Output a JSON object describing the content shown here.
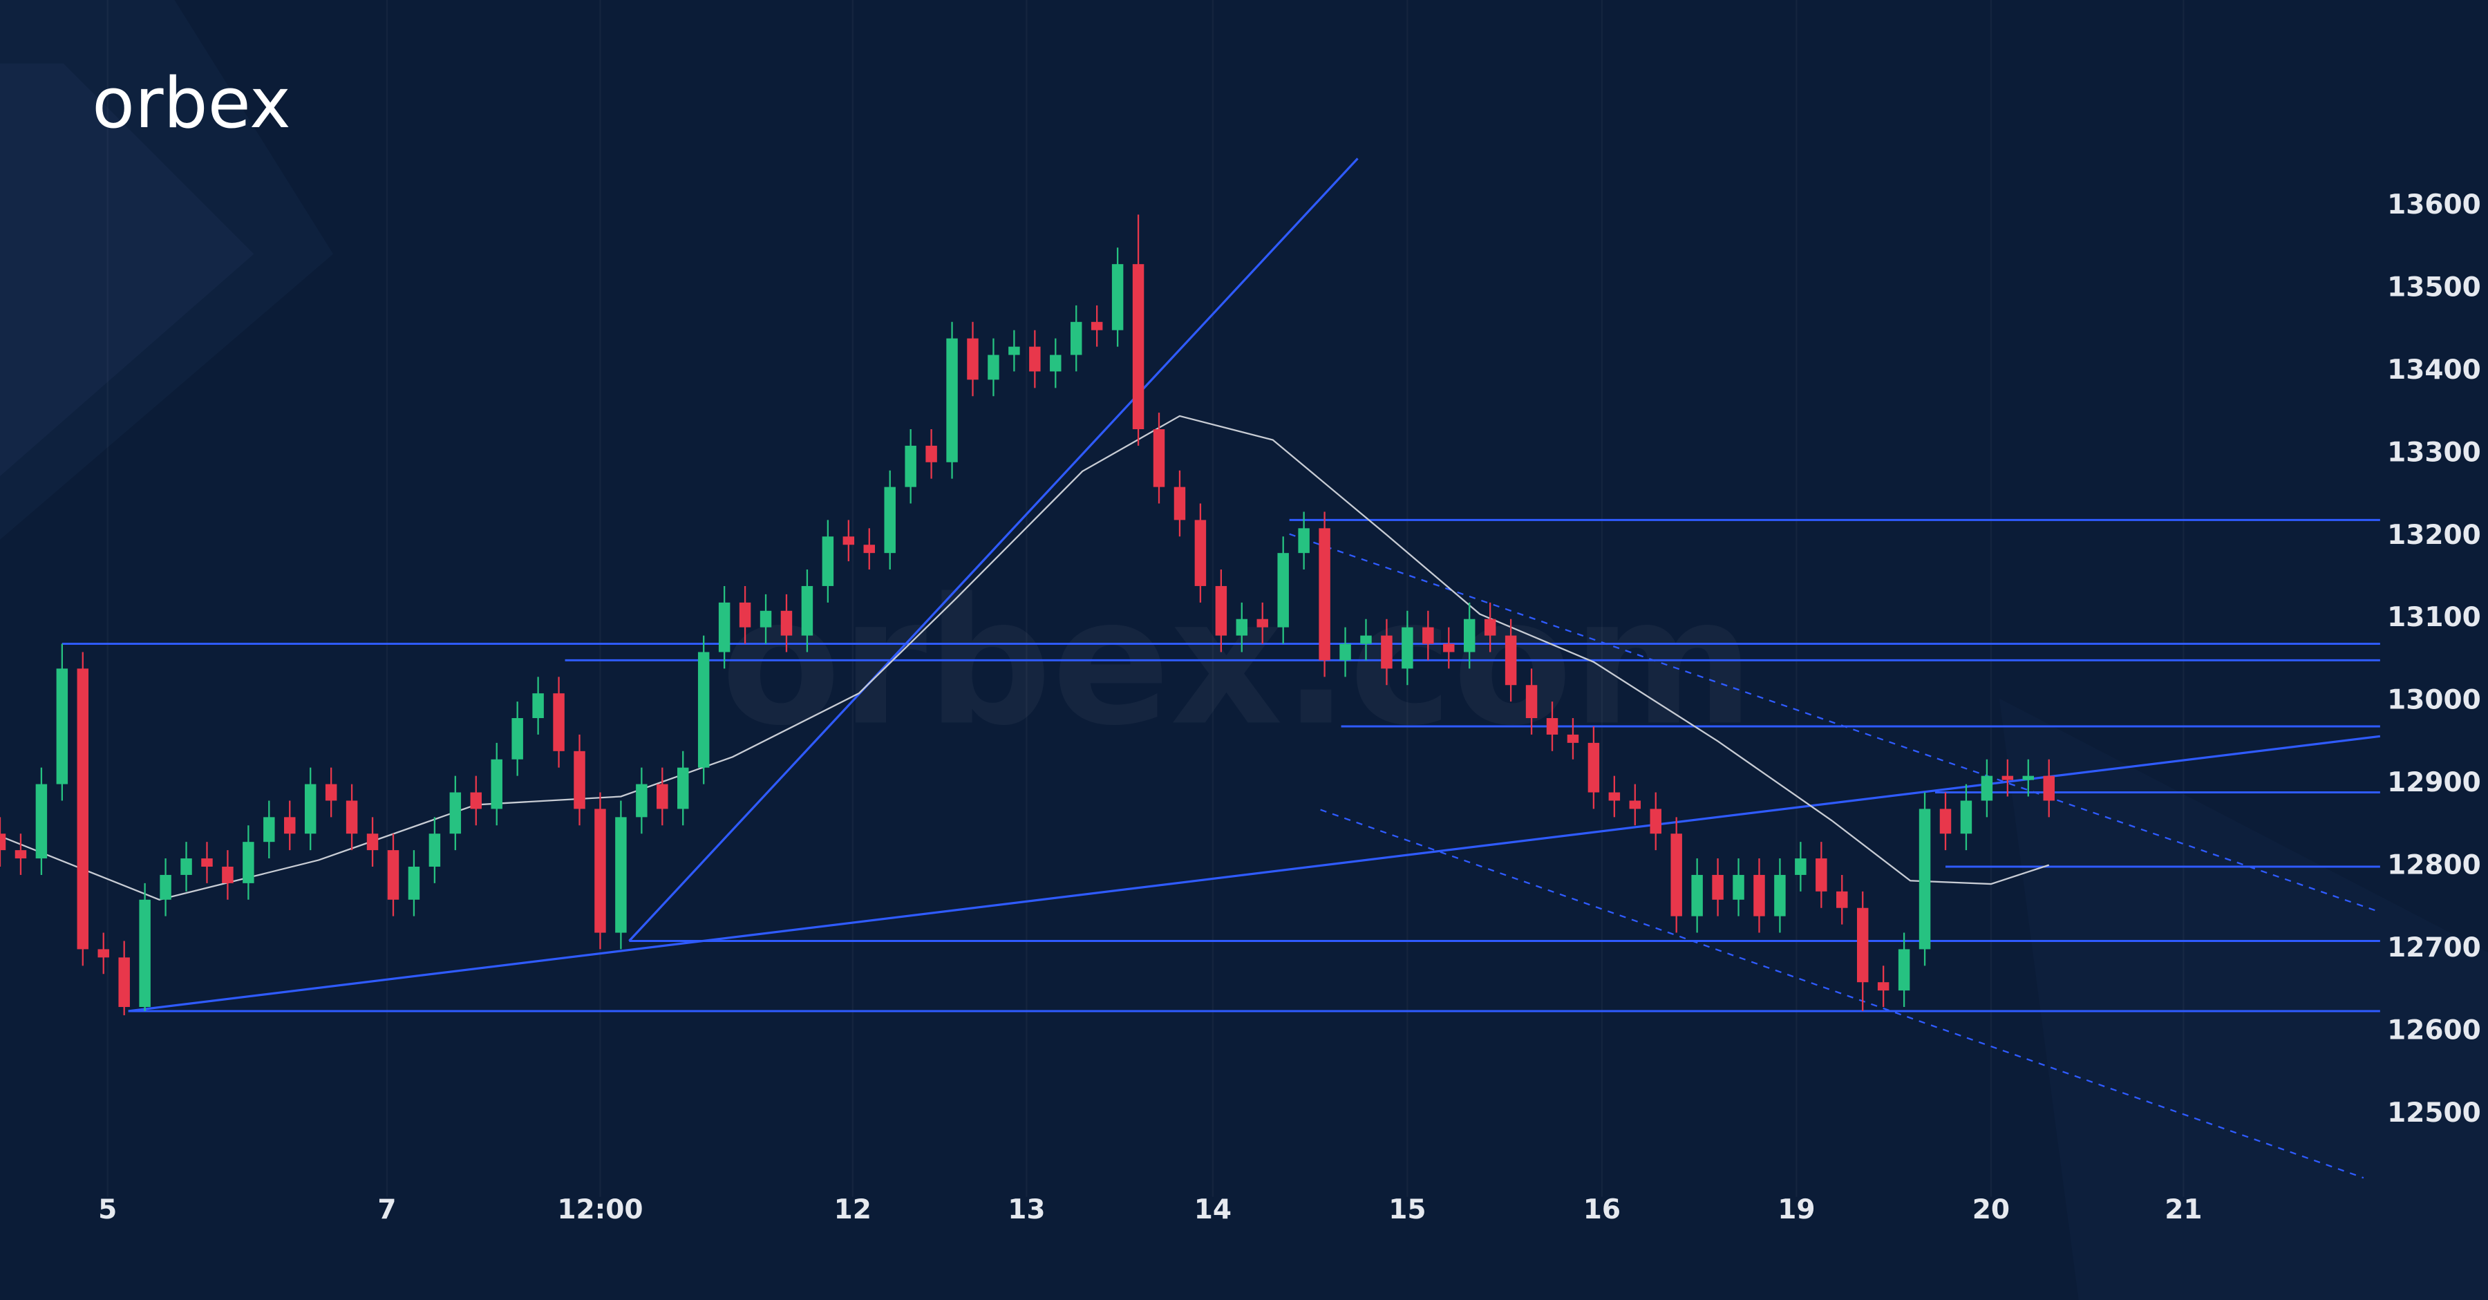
{
  "brand": "orbex",
  "watermark": "orbex.com",
  "chart_data": {
    "type": "candlestick",
    "up_color": "#26c281",
    "down_color": "#e8374b",
    "grid": true,
    "xlim": [
      0,
      115
    ],
    "ylim": [
      12400,
      13850
    ],
    "yticks": [
      12500,
      12600,
      12700,
      12800,
      12900,
      13000,
      13100,
      13200,
      13300,
      13400,
      13500,
      13600
    ],
    "xticks": [
      {
        "value": 5.2,
        "label": "5"
      },
      {
        "value": 18.7,
        "label": "7"
      },
      {
        "value": 29,
        "label": "12:00"
      },
      {
        "value": 41.2,
        "label": "12"
      },
      {
        "value": 49.6,
        "label": "13"
      },
      {
        "value": 58.6,
        "label": "14"
      },
      {
        "value": 68,
        "label": "15"
      },
      {
        "value": 77.4,
        "label": "16"
      },
      {
        "value": 86.8,
        "label": "19"
      },
      {
        "value": 96.2,
        "label": "20"
      },
      {
        "value": 105.5,
        "label": "21"
      }
    ],
    "open": [
      12840,
      12820,
      12810,
      12900,
      13040,
      12700,
      12690,
      12630,
      12760,
      12790,
      12810,
      12800,
      12780,
      12830,
      12860,
      12840,
      12900,
      12880,
      12840,
      12820,
      12760,
      12800,
      12840,
      12890,
      12870,
      12930,
      12980,
      13010,
      12940,
      12870,
      12720,
      12860,
      12900,
      12870,
      12920,
      13060,
      13120,
      13090,
      13110,
      13080,
      13140,
      13200,
      13190,
      13180,
      13260,
      13310,
      13290,
      13440,
      13390,
      13420,
      13430,
      13400,
      13420,
      13460,
      13450,
      13530,
      13330,
      13260,
      13220,
      13140,
      13080,
      13100,
      13090,
      13180,
      13210,
      13050,
      13070,
      13080,
      13040,
      13090,
      13070,
      13060,
      13100,
      13080,
      13020,
      12980,
      12960,
      12950,
      12890,
      12880,
      12870,
      12840,
      12740,
      12790,
      12760,
      12790,
      12740,
      12790,
      12810,
      12770,
      12750,
      12660,
      12650,
      12700,
      12870,
      12840,
      12880,
      12910,
      12905,
      12910
    ],
    "high": [
      12860,
      12840,
      12920,
      13070,
      13060,
      12720,
      12710,
      12780,
      12810,
      12830,
      12830,
      12820,
      12850,
      12880,
      12880,
      12920,
      12920,
      12900,
      12860,
      12840,
      12820,
      12860,
      12910,
      12910,
      12950,
      13000,
      13030,
      13030,
      12960,
      12890,
      12880,
      12920,
      12920,
      12940,
      13080,
      13140,
      13140,
      13130,
      13130,
      13160,
      13220,
      13220,
      13210,
      13280,
      13330,
      13330,
      13460,
      13460,
      13440,
      13450,
      13450,
      13440,
      13480,
      13480,
      13550,
      13590,
      13350,
      13280,
      13240,
      13160,
      13120,
      13120,
      13200,
      13230,
      13230,
      13090,
      13100,
      13100,
      13110,
      13110,
      13090,
      13120,
      13120,
      13100,
      13040,
      13000,
      12980,
      12970,
      12910,
      12900,
      12890,
      12860,
      12810,
      12810,
      12810,
      12810,
      12810,
      12830,
      12830,
      12790,
      12770,
      12680,
      12720,
      12890,
      12890,
      12900,
      12930,
      12930,
      12930,
      12930
    ],
    "low": [
      12800,
      12790,
      12790,
      12880,
      12680,
      12670,
      12620,
      12625,
      12740,
      12770,
      12780,
      12760,
      12760,
      12810,
      12820,
      12820,
      12860,
      12820,
      12800,
      12740,
      12740,
      12780,
      12820,
      12850,
      12850,
      12910,
      12960,
      12920,
      12850,
      12700,
      12700,
      12840,
      12850,
      12850,
      12900,
      13040,
      13070,
      13070,
      13060,
      13060,
      13120,
      13170,
      13160,
      13160,
      13240,
      13270,
      13270,
      13370,
      13370,
      13400,
      13380,
      13380,
      13400,
      13430,
      13430,
      13310,
      13240,
      13200,
      13120,
      13060,
      13060,
      13070,
      13070,
      13160,
      13030,
      13030,
      13050,
      13020,
      13020,
      13050,
      13040,
      13040,
      13060,
      13000,
      12960,
      12940,
      12930,
      12870,
      12860,
      12850,
      12820,
      12720,
      12720,
      12740,
      12740,
      12720,
      12720,
      12770,
      12750,
      12730,
      12625,
      12630,
      12630,
      12680,
      12820,
      12820,
      12860,
      12885,
      12885,
      12860
    ],
    "close": [
      12820,
      12810,
      12900,
      13040,
      12700,
      12690,
      12630,
      12760,
      12790,
      12810,
      12800,
      12780,
      12830,
      12860,
      12840,
      12900,
      12880,
      12840,
      12820,
      12760,
      12800,
      12840,
      12890,
      12870,
      12930,
      12980,
      13010,
      12940,
      12870,
      12720,
      12860,
      12900,
      12870,
      12920,
      13060,
      13120,
      13090,
      13110,
      13080,
      13140,
      13200,
      13190,
      13180,
      13260,
      13310,
      13290,
      13440,
      13390,
      13420,
      13430,
      13400,
      13420,
      13460,
      13450,
      13530,
      13330,
      13260,
      13220,
      13140,
      13080,
      13100,
      13090,
      13180,
      13210,
      13050,
      13070,
      13080,
      13040,
      13090,
      13070,
      13060,
      13100,
      13080,
      13020,
      12980,
      12960,
      12950,
      12890,
      12880,
      12870,
      12840,
      12740,
      12790,
      12760,
      12790,
      12740,
      12790,
      12810,
      12770,
      12750,
      12660,
      12650,
      12700,
      12870,
      12840,
      12880,
      12910,
      12905,
      12910,
      12880
    ],
    "moving_average": {
      "color": "#c8ccd4",
      "x": [
        0,
        7.7,
        15.4,
        23,
        30,
        35.4,
        41.5,
        46.2,
        52.3,
        57,
        61.5,
        67,
        71.5,
        77,
        83,
        88.5,
        92.3,
        96.2,
        99
      ],
      "values": [
        12837,
        12760,
        12808,
        12875,
        12885,
        12933,
        13010,
        13125,
        13279,
        13346,
        13317,
        13202,
        13106,
        13048,
        12952,
        12856,
        12783,
        12779,
        12802
      ]
    },
    "levels": {
      "color": "#2f5bff",
      "values": [
        13220,
        13070,
        13050,
        12970,
        12890,
        12800,
        12710,
        12625
      ],
      "from": [
        62.3,
        3,
        27.3,
        64.8,
        93.5,
        94,
        30.4,
        6.2
      ]
    },
    "trendlines": [
      {
        "x": [
          30.4,
          65.6
        ],
        "values": [
          12710,
          13658
        ],
        "dashed": false
      },
      {
        "x": [
          6.2,
          115
        ],
        "values": [
          12625,
          12958
        ],
        "dashed": false
      },
      {
        "x": [
          62.3,
          115
        ],
        "values": [
          13203,
          12745
        ],
        "dashed": true
      },
      {
        "x": [
          63.8,
          114.2
        ],
        "values": [
          12869,
          12423
        ],
        "dashed": true
      }
    ]
  }
}
